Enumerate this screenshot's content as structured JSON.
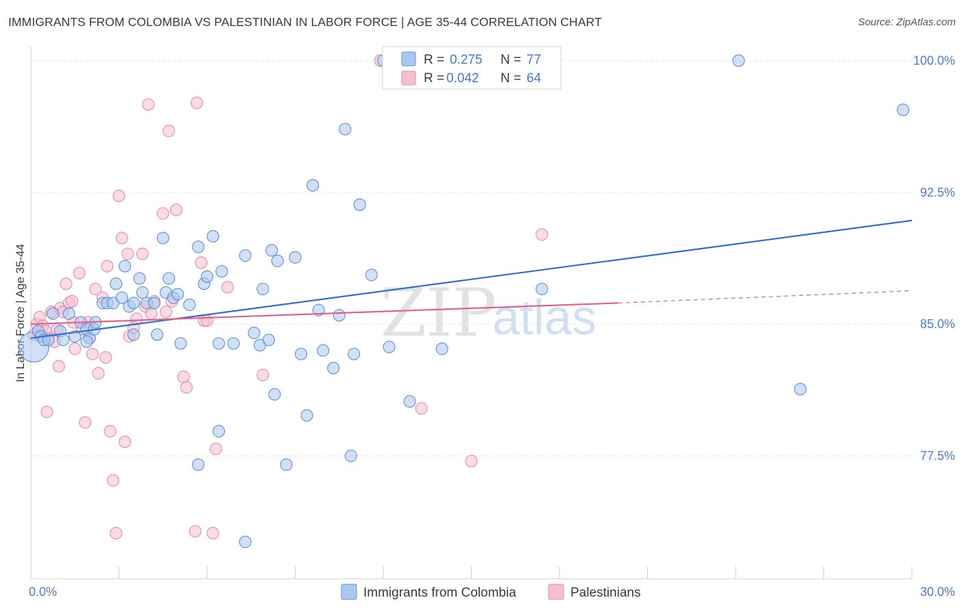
{
  "title": "IMMIGRANTS FROM COLOMBIA VS PALESTINIAN IN LABOR FORCE | AGE 35-44 CORRELATION CHART",
  "source": "Source: ZipAtlas.com",
  "watermark": {
    "zip": "ZIP",
    "atlas": "atlas"
  },
  "legend": {
    "r_label": "R =",
    "n_label": "N =",
    "entries": [
      {
        "r": "0.275",
        "n": "77"
      },
      {
        "r": "0.042",
        "n": "64"
      }
    ]
  },
  "chart_data": {
    "type": "scatter",
    "title": "IMMIGRANTS FROM COLOMBIA VS PALESTINIAN IN LABOR FORCE | AGE 35-44 CORRELATION CHART",
    "xlabel": "",
    "ylabel": "In Labor Force | Age 35-44",
    "xlim": [
      0,
      30
    ],
    "ylim": [
      70.5,
      100.8
    ],
    "x_tick_labels": [
      "0.0%",
      "30.0%"
    ],
    "y_ticks": [
      77.5,
      85.0,
      92.5,
      100.0
    ],
    "y_tick_labels": [
      "77.5%",
      "85.0%",
      "92.5%",
      "100.0%"
    ],
    "grid": true,
    "legend_position": "top-center",
    "colors": {
      "colombia_fill": "#a9c8f0",
      "colombia_stroke": "#5a8fd6",
      "colombia_line": "#2f6fd0",
      "palestinian_fill": "#f7bfcf",
      "palestinian_stroke": "#e58aa8",
      "palestinian_line": "#e0608f"
    },
    "series": [
      {
        "name": "Immigrants from Colombia",
        "r": 0.275,
        "n": 77,
        "trend": {
          "x": [
            0,
            30
          ],
          "y": [
            84.2,
            90.9
          ]
        },
        "points": [
          [
            0.1,
            83.7
          ],
          [
            0.25,
            84.6
          ],
          [
            0.35,
            84.3
          ],
          [
            0.45,
            84.1
          ],
          [
            0.6,
            84.1
          ],
          [
            0.75,
            85.6
          ],
          [
            1.0,
            84.6
          ],
          [
            1.1,
            84.1
          ],
          [
            1.3,
            85.6
          ],
          [
            1.5,
            84.3
          ],
          [
            1.7,
            85.1
          ],
          [
            1.9,
            84.7
          ],
          [
            2.0,
            84.2
          ],
          [
            2.15,
            84.7
          ],
          [
            2.2,
            85.1
          ],
          [
            2.45,
            86.2
          ],
          [
            2.6,
            86.2
          ],
          [
            2.8,
            86.2
          ],
          [
            2.9,
            87.3
          ],
          [
            3.1,
            86.5
          ],
          [
            3.2,
            88.3
          ],
          [
            3.35,
            86.0
          ],
          [
            3.5,
            84.4
          ],
          [
            3.7,
            87.6
          ],
          [
            3.8,
            86.8
          ],
          [
            3.95,
            86.2
          ],
          [
            4.2,
            86.2
          ],
          [
            4.3,
            84.4
          ],
          [
            4.5,
            89.9
          ],
          [
            4.6,
            86.8
          ],
          [
            4.7,
            87.6
          ],
          [
            4.85,
            86.5
          ],
          [
            5.0,
            86.7
          ],
          [
            5.1,
            83.9
          ],
          [
            5.4,
            86.1
          ],
          [
            5.7,
            89.4
          ],
          [
            5.9,
            87.3
          ],
          [
            6.0,
            87.7
          ],
          [
            6.2,
            90.0
          ],
          [
            6.4,
            83.9
          ],
          [
            6.5,
            88.0
          ],
          [
            6.9,
            83.9
          ],
          [
            7.3,
            88.9
          ],
          [
            7.6,
            84.5
          ],
          [
            7.8,
            83.8
          ],
          [
            7.9,
            87.0
          ],
          [
            8.1,
            84.1
          ],
          [
            8.2,
            89.2
          ],
          [
            8.3,
            81.0
          ],
          [
            8.4,
            88.6
          ],
          [
            8.7,
            77.0
          ],
          [
            9.0,
            88.8
          ],
          [
            9.2,
            83.3
          ],
          [
            9.4,
            79.8
          ],
          [
            9.6,
            92.9
          ],
          [
            9.8,
            85.8
          ],
          [
            9.95,
            83.5
          ],
          [
            10.3,
            82.5
          ],
          [
            10.5,
            85.5
          ],
          [
            10.7,
            96.1
          ],
          [
            10.9,
            77.5
          ],
          [
            11.0,
            83.3
          ],
          [
            11.2,
            91.8
          ],
          [
            11.6,
            87.8
          ],
          [
            12.0,
            100.0
          ],
          [
            12.2,
            83.7
          ],
          [
            12.9,
            80.6
          ],
          [
            14.0,
            83.6
          ],
          [
            17.4,
            87.0
          ],
          [
            24.1,
            100.0
          ],
          [
            26.2,
            81.3
          ],
          [
            29.7,
            97.2
          ],
          [
            5.7,
            77.0
          ],
          [
            6.4,
            78.9
          ],
          [
            7.3,
            72.6
          ],
          [
            1.9,
            84.0
          ],
          [
            3.5,
            86.2
          ]
        ]
      },
      {
        "name": "Palestinians",
        "r": 0.042,
        "n": 64,
        "trend": {
          "x": [
            0,
            20.0
          ],
          "y": [
            85.0,
            86.2
          ]
        },
        "trend_extension": {
          "x": [
            20.0,
            30
          ],
          "y": [
            86.2,
            86.9
          ]
        },
        "points": [
          [
            0.1,
            84.4
          ],
          [
            0.2,
            85.0
          ],
          [
            0.3,
            85.4
          ],
          [
            0.4,
            84.9
          ],
          [
            0.5,
            84.6
          ],
          [
            0.6,
            84.2
          ],
          [
            0.7,
            85.7
          ],
          [
            0.8,
            84.0
          ],
          [
            0.95,
            82.6
          ],
          [
            1.0,
            85.9
          ],
          [
            1.1,
            85.7
          ],
          [
            1.2,
            87.3
          ],
          [
            1.3,
            86.2
          ],
          [
            1.45,
            85.1
          ],
          [
            1.5,
            83.6
          ],
          [
            1.65,
            87.9
          ],
          [
            1.75,
            84.7
          ],
          [
            1.85,
            79.4
          ],
          [
            1.95,
            85.1
          ],
          [
            2.1,
            83.3
          ],
          [
            2.2,
            87.0
          ],
          [
            2.3,
            82.2
          ],
          [
            2.45,
            86.5
          ],
          [
            2.55,
            83.1
          ],
          [
            2.6,
            88.3
          ],
          [
            2.7,
            78.9
          ],
          [
            2.8,
            76.1
          ],
          [
            2.9,
            73.1
          ],
          [
            3.0,
            92.3
          ],
          [
            3.1,
            89.9
          ],
          [
            3.2,
            78.3
          ],
          [
            3.3,
            89.0
          ],
          [
            3.35,
            84.3
          ],
          [
            3.5,
            84.8
          ],
          [
            3.6,
            85.3
          ],
          [
            3.8,
            89.0
          ],
          [
            3.9,
            86.0
          ],
          [
            4.0,
            97.5
          ],
          [
            4.1,
            85.6
          ],
          [
            4.2,
            86.3
          ],
          [
            4.5,
            91.3
          ],
          [
            4.6,
            85.7
          ],
          [
            4.7,
            96.0
          ],
          [
            4.8,
            86.3
          ],
          [
            4.95,
            91.5
          ],
          [
            5.2,
            82.0
          ],
          [
            5.3,
            81.4
          ],
          [
            5.6,
            73.2
          ],
          [
            5.65,
            97.6
          ],
          [
            5.8,
            88.5
          ],
          [
            5.9,
            85.2
          ],
          [
            6.0,
            85.2
          ],
          [
            6.2,
            73.1
          ],
          [
            6.3,
            77.9
          ],
          [
            6.7,
            87.1
          ],
          [
            7.9,
            82.1
          ],
          [
            11.9,
            100.0
          ],
          [
            13.3,
            80.2
          ],
          [
            15.0,
            77.2
          ],
          [
            17.4,
            90.1
          ],
          [
            0.55,
            80.0
          ],
          [
            0.9,
            84.7
          ],
          [
            2.0,
            84.2
          ],
          [
            1.4,
            86.3
          ]
        ]
      }
    ]
  },
  "bottom_legend": [
    {
      "label": "Immigrants from Colombia"
    },
    {
      "label": "Palestinians"
    }
  ]
}
